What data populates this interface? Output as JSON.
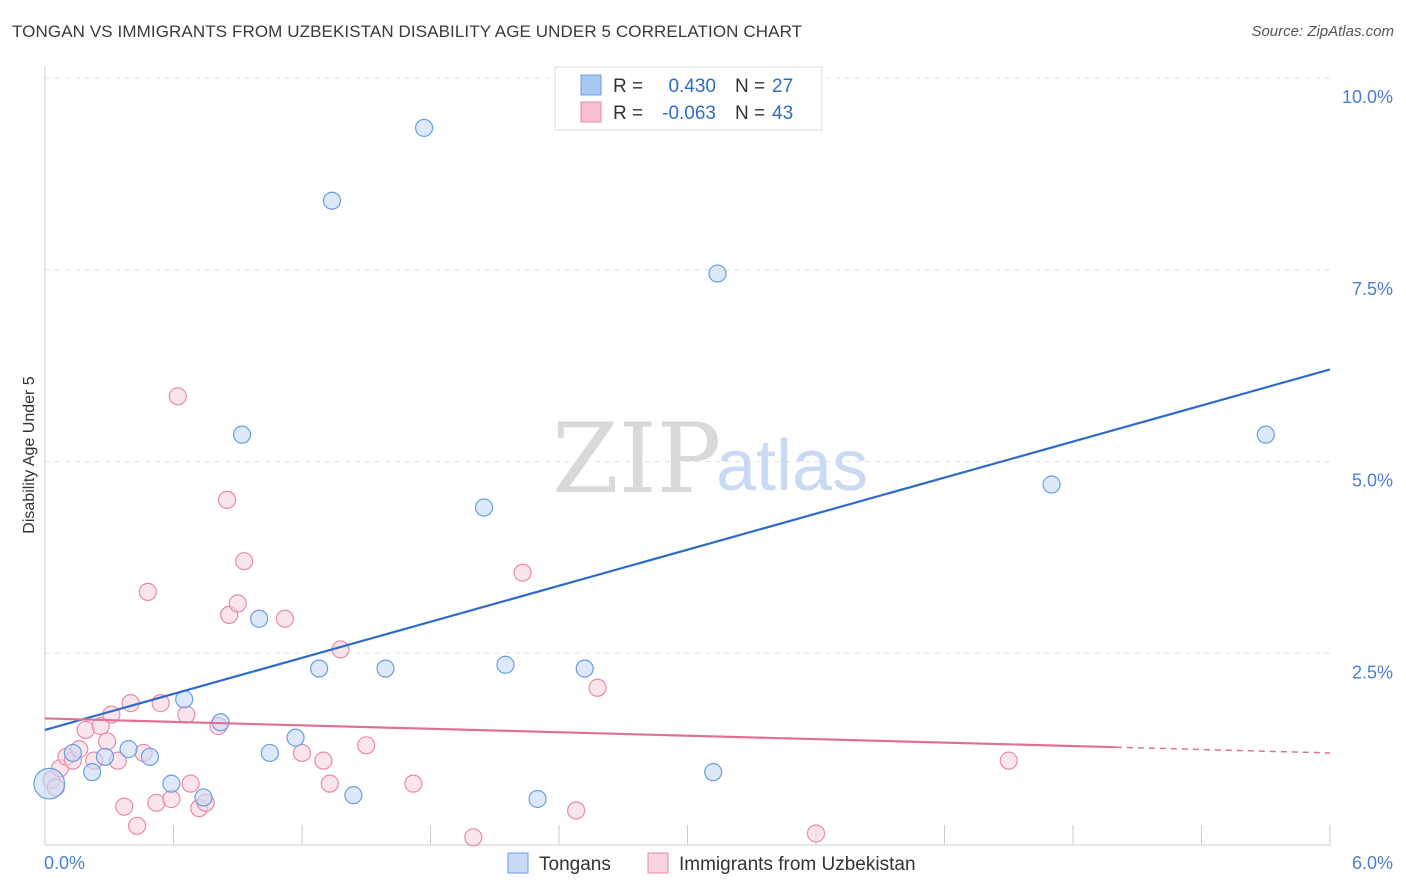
{
  "title": "TONGAN VS IMMIGRANTS FROM UZBEKISTAN DISABILITY AGE UNDER 5 CORRELATION CHART",
  "source": "Source: ZipAtlas.com",
  "watermark": {
    "zip": "ZIP",
    "atlas": "atlas"
  },
  "legend": {
    "r_label": "R =",
    "n_label": "N =",
    "rows": [
      {
        "r": "0.430",
        "n": "27",
        "color": "#a9c9f2",
        "stroke": "#6a9ee0"
      },
      {
        "r": "-0.063",
        "n": "43",
        "color": "#f7c0d1",
        "stroke": "#e98aa9"
      }
    ]
  },
  "bottom_legend": [
    "Tongans",
    "Immigrants from Uzbekistan"
  ],
  "chart_data": {
    "type": "scatter",
    "title": "TONGAN VS IMMIGRANTS FROM UZBEKISTAN DISABILITY AGE UNDER 5 CORRELATION CHART",
    "xlabel": "",
    "ylabel": "Disability Age Under 5",
    "xlim": [
      0,
      6.0
    ],
    "ylim": [
      0,
      10.0
    ],
    "x_tick_labels": [
      "0.0%",
      "6.0%"
    ],
    "y_ticks": [
      2.5,
      5.0,
      7.5,
      10.0
    ],
    "y_tick_labels": [
      "2.5%",
      "5.0%",
      "7.5%",
      "10.0%"
    ],
    "grid": true,
    "legend_position": "top-center",
    "series": [
      {
        "name": "Tongans",
        "color": "#6a9ee0",
        "fill": "#c7dbf5",
        "trend": {
          "x": [
            0.0,
            6.0
          ],
          "y": [
            1.5,
            6.2
          ],
          "color": "#2f6cc9",
          "dashed_from": null
        },
        "points": [
          [
            0.02,
            0.8,
            1.8
          ],
          [
            0.13,
            1.2,
            1
          ],
          [
            0.22,
            0.95,
            1
          ],
          [
            0.28,
            1.15,
            1
          ],
          [
            0.39,
            1.25,
            1
          ],
          [
            0.49,
            1.15,
            1
          ],
          [
            0.59,
            0.8,
            1
          ],
          [
            0.65,
            1.9,
            1
          ],
          [
            0.74,
            0.62,
            1
          ],
          [
            0.82,
            1.6,
            1
          ],
          [
            0.92,
            5.35,
            1
          ],
          [
            1.05,
            1.2,
            1
          ],
          [
            1.0,
            2.95,
            1
          ],
          [
            1.17,
            1.4,
            1
          ],
          [
            1.28,
            2.3,
            1
          ],
          [
            1.34,
            8.4,
            1
          ],
          [
            1.44,
            0.65,
            1
          ],
          [
            1.59,
            2.3,
            1
          ],
          [
            1.77,
            9.35,
            1
          ],
          [
            2.05,
            4.4,
            1
          ],
          [
            2.15,
            2.35,
            1
          ],
          [
            2.3,
            0.6,
            1
          ],
          [
            2.52,
            2.3,
            1
          ],
          [
            3.12,
            0.95,
            1
          ],
          [
            3.14,
            7.45,
            1
          ],
          [
            4.7,
            4.7,
            1
          ],
          [
            5.7,
            5.35,
            1
          ]
        ]
      },
      {
        "name": "Immigrants from Uzbekistan",
        "color": "#e98aa9",
        "fill": "#f9d3df",
        "trend": {
          "x": [
            0.0,
            6.0
          ],
          "y": [
            1.65,
            1.2
          ],
          "color": "#e0709a",
          "dashed_from": 5.0
        },
        "points": [
          [
            0.03,
            0.85,
            1
          ],
          [
            0.07,
            1.0,
            1
          ],
          [
            0.1,
            1.15,
            1
          ],
          [
            0.13,
            1.1,
            1
          ],
          [
            0.16,
            1.25,
            1
          ],
          [
            0.19,
            1.5,
            1
          ],
          [
            0.23,
            1.1,
            1
          ],
          [
            0.26,
            1.55,
            1
          ],
          [
            0.29,
            1.35,
            1
          ],
          [
            0.31,
            1.7,
            1
          ],
          [
            0.34,
            1.1,
            1
          ],
          [
            0.37,
            0.5,
            1
          ],
          [
            0.4,
            1.85,
            1
          ],
          [
            0.43,
            0.25,
            1
          ],
          [
            0.46,
            1.2,
            1
          ],
          [
            0.48,
            3.3,
            1
          ],
          [
            0.52,
            0.55,
            1
          ],
          [
            0.54,
            1.85,
            1
          ],
          [
            0.59,
            0.6,
            1
          ],
          [
            0.62,
            5.85,
            1
          ],
          [
            0.66,
            1.7,
            1
          ],
          [
            0.68,
            0.8,
            1
          ],
          [
            0.72,
            0.48,
            1
          ],
          [
            0.75,
            0.55,
            1
          ],
          [
            0.81,
            1.55,
            1
          ],
          [
            0.85,
            4.5,
            1
          ],
          [
            0.86,
            3.0,
            1
          ],
          [
            0.9,
            3.15,
            1
          ],
          [
            0.93,
            3.7,
            1
          ],
          [
            1.12,
            2.95,
            1
          ],
          [
            1.2,
            1.2,
            1
          ],
          [
            1.3,
            1.1,
            1
          ],
          [
            1.33,
            0.8,
            1
          ],
          [
            1.38,
            2.55,
            1
          ],
          [
            1.5,
            1.3,
            1
          ],
          [
            1.72,
            0.8,
            1
          ],
          [
            2.0,
            0.1,
            1
          ],
          [
            2.23,
            3.55,
            1
          ],
          [
            2.48,
            0.45,
            1
          ],
          [
            2.58,
            2.05,
            1
          ],
          [
            3.6,
            0.15,
            1
          ],
          [
            4.5,
            1.1,
            1
          ],
          [
            0.05,
            0.75,
            1
          ]
        ]
      }
    ]
  }
}
